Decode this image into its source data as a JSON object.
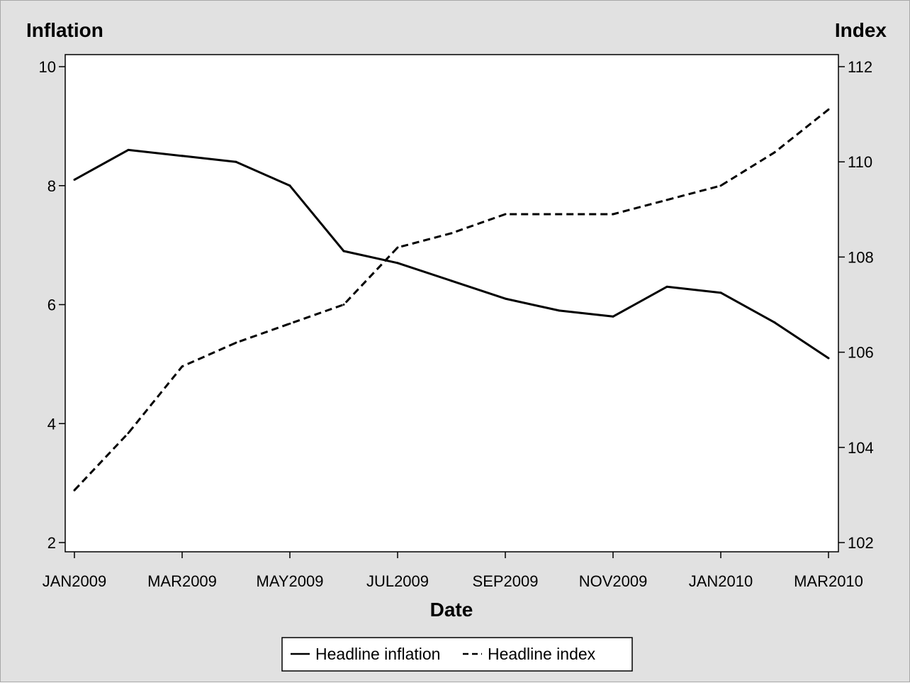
{
  "chart_data": {
    "type": "line",
    "x_label": "Date",
    "y_label": "Inflation",
    "y2_label": "Index",
    "x": [
      "JAN2009",
      "FEB2009",
      "MAR2009",
      "APR2009",
      "MAY2009",
      "JUN2009",
      "JUL2009",
      "AUG2009",
      "SEP2009",
      "OCT2009",
      "NOV2009",
      "DEC2009",
      "JAN2010",
      "FEB2010",
      "MAR2010"
    ],
    "x_ticks": [
      "JAN2009",
      "MAR2009",
      "MAY2009",
      "JUL2009",
      "SEP2009",
      "NOV2009",
      "JAN2010",
      "MAR2010"
    ],
    "y_range": [
      2,
      10
    ],
    "y_ticks": [
      2,
      4,
      6,
      8,
      10
    ],
    "y2_range": [
      102,
      112
    ],
    "y2_ticks": [
      102,
      104,
      106,
      108,
      110,
      112
    ],
    "grid": false,
    "legend_position": "bottom",
    "series": [
      {
        "name": "Headline inflation",
        "axis": "left",
        "line_style": "solid",
        "color": "#000000",
        "values": [
          8.1,
          8.6,
          8.5,
          8.4,
          8.0,
          6.9,
          6.7,
          6.4,
          6.1,
          5.9,
          5.8,
          6.3,
          6.2,
          5.7,
          5.1
        ]
      },
      {
        "name": "Headline index",
        "axis": "right",
        "line_style": "dashed",
        "color": "#000000",
        "values": [
          103.1,
          104.3,
          105.7,
          106.2,
          106.6,
          107.0,
          108.2,
          108.5,
          108.9,
          108.9,
          108.9,
          109.2,
          109.5,
          110.2,
          111.1
        ]
      }
    ]
  }
}
